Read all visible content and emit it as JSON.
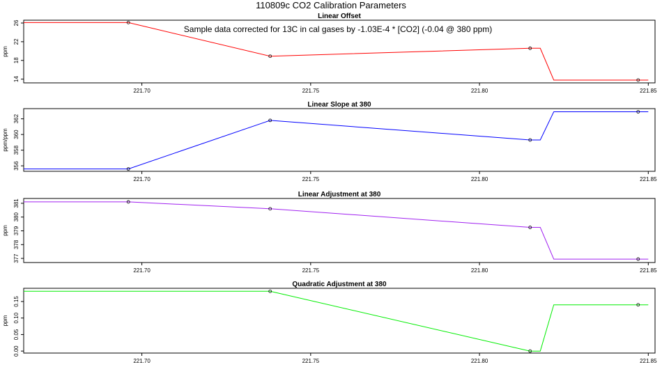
{
  "figure": {
    "title": "110809c   CO2 Calibration Parameters",
    "note": "Sample data corrected for 13C in cal gases by -1.03E-4 * [CO2] (-0.04 @ 380 ppm)"
  },
  "chart_data": [
    {
      "type": "line",
      "title": "Linear Offset",
      "xlabel": "",
      "ylabel": "ppm",
      "color": "#ff0000",
      "xlim": [
        221.665,
        221.852
      ],
      "ylim": [
        13.2,
        26.6
      ],
      "xticks": [
        "221.70",
        "221.75",
        "221.80",
        "221.85"
      ],
      "yticks": [
        "14",
        "18",
        "22",
        "26"
      ],
      "grid": false,
      "series": [
        {
          "x": [
            221.665,
            221.696,
            221.738,
            221.815,
            221.818,
            221.822,
            221.847,
            221.85
          ],
          "y": [
            26.1,
            26.1,
            18.9,
            20.6,
            20.6,
            13.8,
            13.8,
            13.8
          ]
        }
      ],
      "markers": {
        "x": [
          221.696,
          221.738,
          221.815,
          221.847
        ],
        "y": [
          26.1,
          18.9,
          20.6,
          13.8
        ]
      }
    },
    {
      "type": "line",
      "title": "Linear Slope at 380",
      "xlabel": "",
      "ylabel": "ppm/ppm",
      "color": "#0000ff",
      "xlim": [
        221.665,
        221.852
      ],
      "ylim": [
        355.3,
        363.3
      ],
      "xticks": [
        "221.70",
        "221.75",
        "221.80",
        "221.85"
      ],
      "yticks": [
        "356",
        "358",
        "360",
        "362"
      ],
      "grid": false,
      "series": [
        {
          "x": [
            221.665,
            221.696,
            221.738,
            221.815,
            221.818,
            221.822,
            221.847,
            221.85
          ],
          "y": [
            355.6,
            355.6,
            361.8,
            359.3,
            359.3,
            362.9,
            362.9,
            362.9
          ]
        }
      ],
      "markers": {
        "x": [
          221.696,
          221.738,
          221.815,
          221.847
        ],
        "y": [
          355.6,
          361.8,
          359.3,
          362.9
        ]
      }
    },
    {
      "type": "line",
      "title": "Linear Adjustment at 380",
      "xlabel": "",
      "ylabel": "ppm",
      "color": "#a020f0",
      "xlim": [
        221.665,
        221.852
      ],
      "ylim": [
        376.7,
        381.35
      ],
      "xticks": [
        "221.70",
        "221.75",
        "221.80",
        "221.85"
      ],
      "yticks": [
        "377",
        "378",
        "379",
        "380",
        "381"
      ],
      "grid": false,
      "series": [
        {
          "x": [
            221.665,
            221.696,
            221.738,
            221.815,
            221.818,
            221.822,
            221.847,
            221.85
          ],
          "y": [
            381.1,
            381.1,
            380.6,
            379.25,
            379.25,
            376.95,
            376.95,
            376.95
          ]
        }
      ],
      "markers": {
        "x": [
          221.696,
          221.738,
          221.815,
          221.847
        ],
        "y": [
          381.1,
          380.6,
          379.25,
          376.95
        ]
      }
    },
    {
      "type": "line",
      "title": "Quadratic Adjustment at 380",
      "xlabel": "",
      "ylabel": "ppm",
      "color": "#00ee00",
      "xlim": [
        221.665,
        221.852
      ],
      "ylim": [
        -0.006,
        0.19
      ],
      "xticks": [
        "221.70",
        "221.75",
        "221.80",
        "221.85"
      ],
      "yticks": [
        "0.00",
        "0.05",
        "0.10",
        "0.15"
      ],
      "grid": false,
      "series": [
        {
          "x": [
            221.665,
            221.696,
            221.738,
            221.815,
            221.818,
            221.822,
            221.847,
            221.85
          ],
          "y": [
            0.181,
            0.181,
            0.181,
            0.0,
            0.0,
            0.14,
            0.14,
            0.14
          ]
        }
      ],
      "markers": {
        "x": [
          221.738,
          221.815,
          221.847
        ],
        "y": [
          0.181,
          0.0,
          0.14
        ]
      }
    }
  ]
}
